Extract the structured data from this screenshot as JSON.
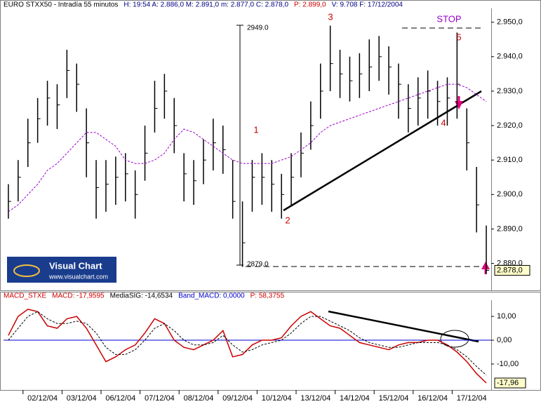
{
  "price_header": [
    {
      "text": "EURO STXX50 - Intradía 55 minutos",
      "color": "#000000"
    },
    {
      "text": "H: 19:54  A: 2.886,0  M: 2.891,0  m: 2.877,0  C: 2.878,0",
      "color": "#000080"
    },
    {
      "text": "P: 2.899,0",
      "color": "#cc0000"
    },
    {
      "text": "V: 9.708  F: 17/12/2004",
      "color": "#000080"
    }
  ],
  "logo": {
    "title": "Visual Chart",
    "url": "www.visualchart.com"
  },
  "chart_data": [
    {
      "type": "ohlc",
      "color": "#000000",
      "x": [
        -1.5,
        -0.5,
        0.5,
        1.5,
        2.5,
        3.5,
        4.5,
        5.5,
        6.5,
        7.5,
        8.5,
        9.5,
        10.5,
        11.5,
        12.5,
        13.5,
        14.5,
        15.5,
        16.5,
        17.5,
        18.5,
        19.5,
        20.5,
        21.5,
        22.5,
        23.5,
        24.5,
        25.5,
        26.5,
        27.5,
        28.5,
        29.5,
        30.5,
        31.5,
        32.5,
        33.5,
        34.5,
        35.5,
        36.5,
        37.5,
        38.5,
        39.5,
        40.5,
        41.5,
        42.5,
        43.5,
        44.5,
        45.5,
        46.5,
        47.5
      ],
      "high": [
        2903,
        2910,
        2922,
        2928,
        2933,
        2932,
        2942,
        2938,
        2925,
        2910,
        2910,
        2911,
        2912,
        2907,
        2920,
        2933,
        2935,
        2928,
        2912,
        2910,
        2916,
        2922,
        2920,
        2910,
        2898,
        2910,
        2912,
        2910,
        2906,
        2912,
        2918,
        2927,
        2938,
        2949,
        2942,
        2940,
        2941,
        2945,
        2946,
        2943,
        2938,
        2932,
        2934,
        2936,
        2933,
        2934,
        2947,
        2925,
        2908,
        2891
      ],
      "low": [
        2893,
        2898,
        2908,
        2915,
        2920,
        2919,
        2928,
        2924,
        2905,
        2893,
        2895,
        2897,
        2898,
        2893,
        2904,
        2918,
        2922,
        2912,
        2898,
        2897,
        2903,
        2907,
        2906,
        2893,
        2879,
        2895,
        2897,
        2895,
        2893,
        2897,
        2905,
        2913,
        2922,
        2930,
        2928,
        2927,
        2928,
        2930,
        2933,
        2929,
        2922,
        2918,
        2920,
        2922,
        2920,
        2920,
        2922,
        2907,
        2889,
        2877
      ],
      "close": [
        2898,
        2905,
        2915,
        2922,
        2928,
        2926,
        2936,
        2932,
        2915,
        2902,
        2903,
        2905,
        2906,
        2900,
        2912,
        2925,
        2930,
        2920,
        2906,
        2904,
        2910,
        2915,
        2913,
        2898,
        2886,
        2905,
        2905,
        2903,
        2900,
        2905,
        2912,
        2920,
        2930,
        2938,
        2935,
        2933,
        2935,
        2937,
        2940,
        2937,
        2932,
        2925,
        2928,
        2930,
        2927,
        2928,
        2932,
        2915,
        2897,
        2878
      ],
      "ma": {
        "color": "#9900cc",
        "values": [
          2895,
          2897,
          2900,
          2903,
          2907,
          2909,
          2912,
          2915,
          2918,
          2918,
          2916,
          2914,
          2910,
          2909,
          2909,
          2910,
          2912,
          2916,
          2919,
          2918,
          2916,
          2914,
          2912,
          2910,
          2909,
          2909,
          2909,
          2909,
          2910,
          2911,
          2913,
          2915,
          2918,
          2920,
          2921,
          2922,
          2923,
          2924,
          2925,
          2926,
          2927,
          2928,
          2929,
          2930,
          2931,
          2932,
          2932,
          2931,
          2929,
          2927
        ]
      },
      "xlim": [
        -2,
        48
      ],
      "ylim": [
        2873,
        2954
      ],
      "yticks": [
        {
          "value": 2880,
          "label": "2.880,0"
        },
        {
          "value": 2890,
          "label": "2.890,0"
        },
        {
          "value": 2900,
          "label": "2.900,0"
        },
        {
          "value": 2910,
          "label": "2.910,0"
        },
        {
          "value": 2920,
          "label": "2.920,0"
        },
        {
          "value": 2930,
          "label": "2.930,0"
        },
        {
          "value": 2940,
          "label": "2.940,0"
        },
        {
          "value": 2950,
          "label": "2.950,0"
        }
      ],
      "last_label": "2.878,0",
      "annotations": [
        "1",
        "2",
        "3",
        "4",
        "5",
        "STOP",
        "2949.0",
        "2879.0"
      ]
    },
    {
      "type": "line",
      "header": [
        {
          "text": "MACD_STXE",
          "color": "#cc0000"
        },
        {
          "text": "MACD: -17,9595",
          "color": "#cc0000"
        },
        {
          "text": "MediaSIG: -14,6534",
          "color": "#000000"
        },
        {
          "text": "Band_MACD: 0,0000",
          "color": "#0000cc"
        },
        {
          "text": "P: 58,3755",
          "color": "#cc0000"
        }
      ],
      "x": [
        -1.5,
        -0.5,
        0.5,
        1.5,
        2.5,
        3.5,
        4.5,
        5.5,
        6.5,
        7.5,
        8.5,
        9.5,
        10.5,
        11.5,
        12.5,
        13.5,
        14.5,
        15.5,
        16.5,
        17.5,
        18.5,
        19.5,
        20.5,
        21.5,
        22.5,
        23.5,
        24.5,
        25.5,
        26.5,
        27.5,
        28.5,
        29.5,
        30.5,
        31.5,
        32.5,
        33.5,
        34.5,
        35.5,
        36.5,
        37.5,
        38.5,
        39.5,
        40.5,
        41.5,
        42.5,
        43.5,
        44.5,
        45.5,
        46.5,
        47.5
      ],
      "series": [
        {
          "color": "#cc0000",
          "dash": false,
          "values": [
            2,
            10,
            13,
            12,
            6,
            5,
            9,
            10,
            5,
            -2,
            -9,
            -7,
            -4,
            -2,
            3,
            9,
            7,
            0,
            -3,
            -4,
            -2,
            0,
            4,
            -7,
            -6,
            -2,
            0,
            0,
            1,
            6,
            10,
            12,
            9,
            6,
            5,
            2,
            -1,
            -2,
            -3,
            -4,
            -2,
            -1,
            -1,
            0,
            0,
            -2,
            -5,
            -9,
            -14,
            -17.96
          ]
        },
        {
          "color": "#000000",
          "dash": true,
          "values": [
            0,
            5,
            10,
            12,
            9,
            7,
            7,
            8,
            7,
            3,
            -3,
            -6,
            -6,
            -4,
            0,
            5,
            7,
            4,
            0,
            -2,
            -2,
            -1,
            2,
            -2,
            -5,
            -4,
            -2,
            -1,
            0,
            3,
            7,
            10,
            10,
            8,
            6,
            4,
            1,
            -1,
            -2,
            -3,
            -3,
            -2,
            -1,
            -1,
            -1,
            -2,
            -4,
            -7,
            -11,
            -14.65
          ]
        }
      ],
      "band": 0,
      "band_color": "#0000cc",
      "xlim": [
        -2,
        48
      ],
      "ylim": [
        -20.6,
        16.2
      ],
      "yticks": [
        {
          "value": -10,
          "label": "-10,00"
        },
        {
          "value": 0,
          "label": "0,00"
        },
        {
          "value": 10,
          "label": "10,00"
        }
      ],
      "xticks": [
        {
          "value": 2,
          "label": "02/12/04"
        },
        {
          "value": 6,
          "label": "03/12/04"
        },
        {
          "value": 10,
          "label": "06/12/04"
        },
        {
          "value": 14,
          "label": "07/12/04"
        },
        {
          "value": 18,
          "label": "08/12/04"
        },
        {
          "value": 22,
          "label": "09/12/04"
        },
        {
          "value": 26,
          "label": "10/12/04"
        },
        {
          "value": 30,
          "label": "13/12/04"
        },
        {
          "value": 34,
          "label": "14/12/04"
        },
        {
          "value": 38,
          "label": "15/12/04"
        },
        {
          "value": 42,
          "label": "16/12/04"
        },
        {
          "value": 46,
          "label": "17/12/04"
        }
      ],
      "last_label": "-17,96"
    }
  ]
}
